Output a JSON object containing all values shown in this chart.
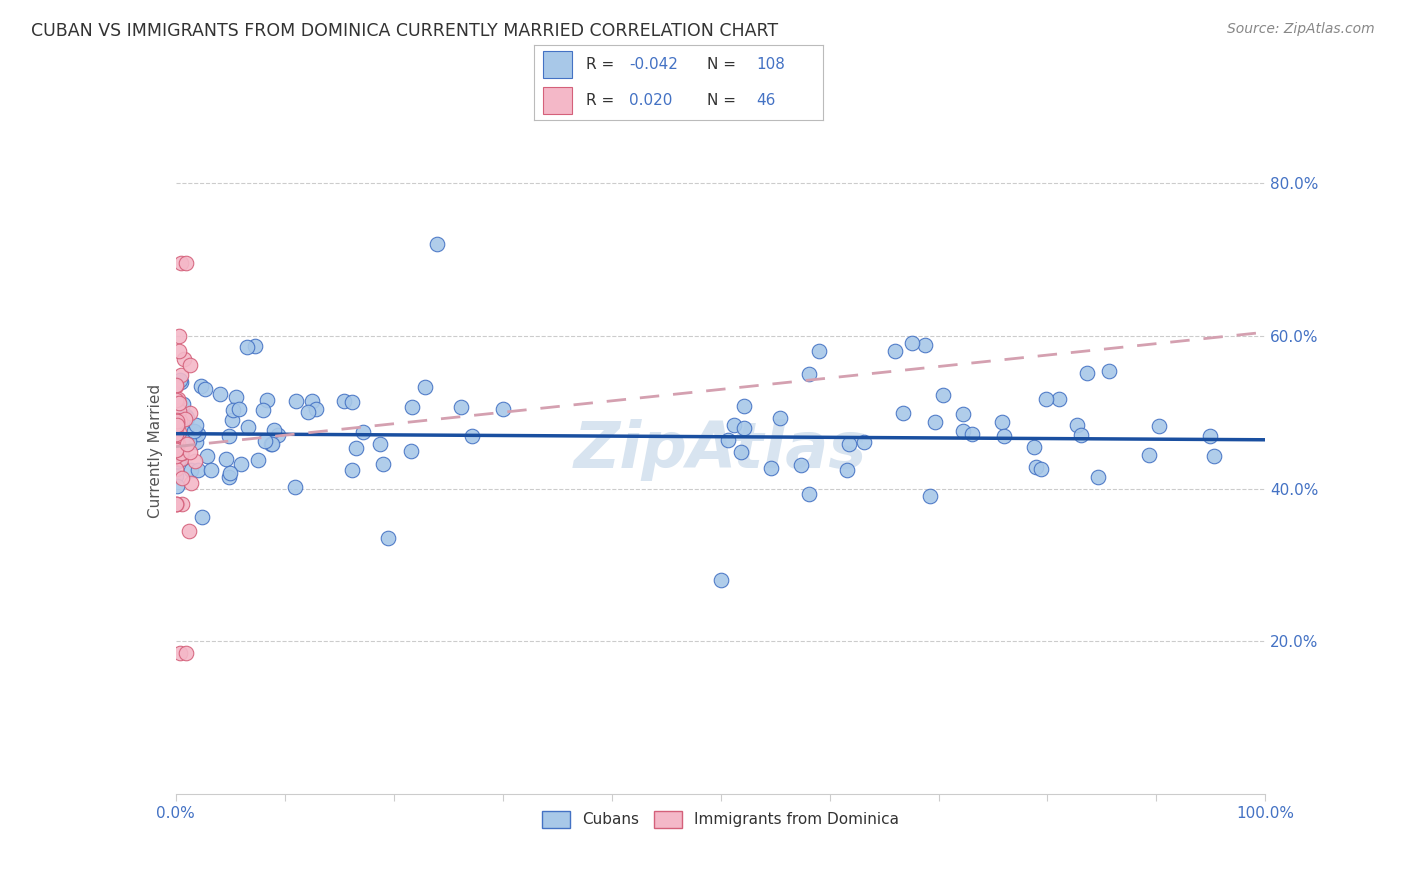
{
  "title": "CUBAN VS IMMIGRANTS FROM DOMINICA CURRENTLY MARRIED CORRELATION CHART",
  "source": "Source: ZipAtlas.com",
  "ylabel": "Currently Married",
  "watermark": "ZipAtlas",
  "legend_label1": "Cubans",
  "legend_label2": "Immigrants from Dominica",
  "r1": -0.042,
  "n1": 108,
  "r2": 0.02,
  "n2": 46,
  "color_blue_fill": "#a8c8e8",
  "color_blue_edge": "#4472c4",
  "color_pink_fill": "#f4b8c8",
  "color_pink_edge": "#d4607a",
  "color_line_blue": "#1a4fa0",
  "color_line_pink": "#d4a0b0",
  "color_title": "#333333",
  "color_tick_label": "#4472c4",
  "color_source": "#888888",
  "color_watermark": "#d8e4f0",
  "color_grid": "#cccccc",
  "xlim": [
    0.0,
    1.0
  ],
  "ylim": [
    0.0,
    0.9
  ],
  "yticks": [
    0.2,
    0.4,
    0.6,
    0.8
  ],
  "ytick_labels": [
    "20.0%",
    "40.0%",
    "60.0%",
    "80.0%"
  ],
  "blue_line_y0": 0.472,
  "blue_line_y1": 0.464,
  "pink_line_y0": 0.455,
  "pink_line_y1": 0.605
}
